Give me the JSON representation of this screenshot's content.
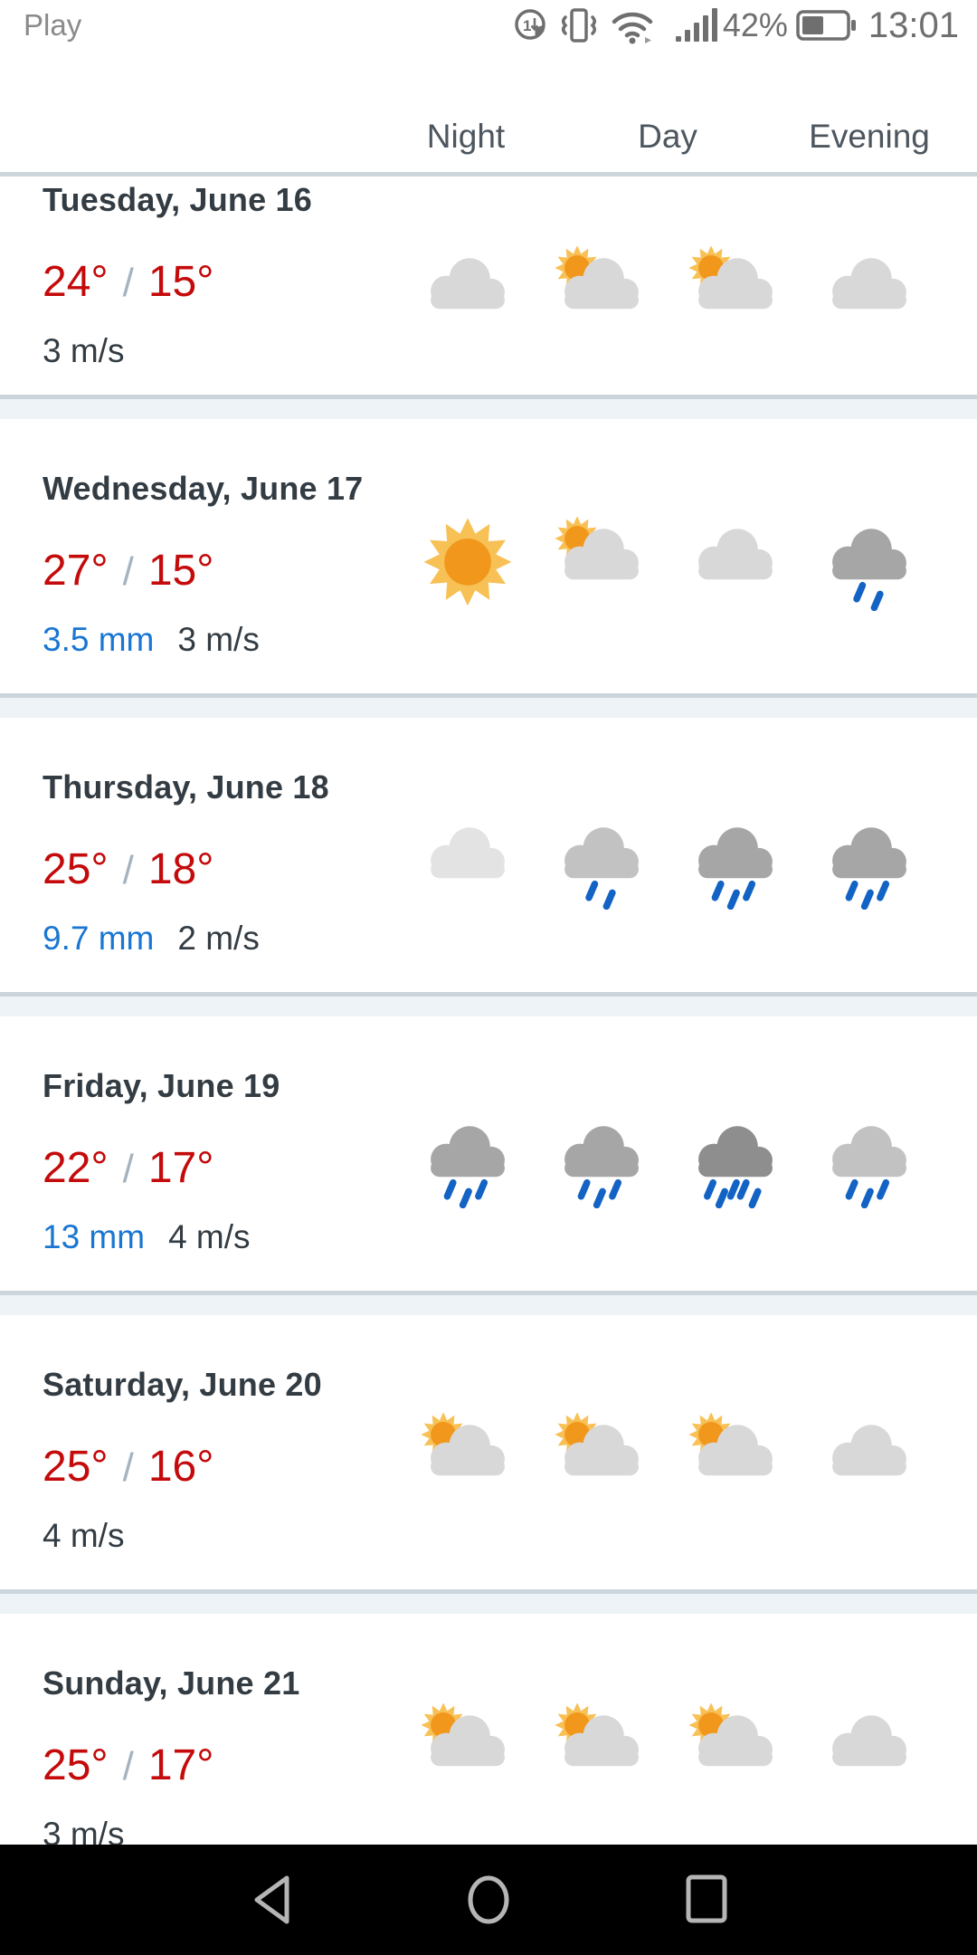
{
  "status_bar": {
    "carrier": "Play",
    "battery_percent": "42%",
    "time": "13:01",
    "icons": [
      "performance-mode",
      "vibrate",
      "wifi",
      "signal-strength",
      "battery"
    ]
  },
  "header": {
    "columns": {
      "night": "Night",
      "day": "Day",
      "evening": "Evening"
    }
  },
  "days": [
    {
      "title": "Tuesday, June 16",
      "high": "24°",
      "separator": "/",
      "low": "15°",
      "precipitation": "",
      "wind": "3 m/s",
      "icons": [
        {
          "type": "cloudy",
          "tone": "light"
        },
        {
          "type": "partly-sunny",
          "tone": "light"
        },
        {
          "type": "partly-sunny",
          "tone": "light"
        },
        {
          "type": "partly-moon",
          "tone": "light"
        }
      ]
    },
    {
      "title": "Wednesday, June 17",
      "high": "27°",
      "separator": "/",
      "low": "15°",
      "precipitation": "3.5 mm",
      "wind": "3 m/s",
      "icons": [
        {
          "type": "sunny"
        },
        {
          "type": "partly-sunny",
          "tone": "light"
        },
        {
          "type": "cloudy",
          "tone": "light"
        },
        {
          "type": "rain",
          "tone": "dark",
          "drops": 2
        }
      ]
    },
    {
      "title": "Thursday, June 18",
      "high": "25°",
      "separator": "/",
      "low": "18°",
      "precipitation": "9.7 mm",
      "wind": "2 m/s",
      "icons": [
        {
          "type": "cloudy",
          "tone": "lightest"
        },
        {
          "type": "rain",
          "tone": "medium",
          "drops": 2
        },
        {
          "type": "rain",
          "tone": "dark",
          "drops": 3
        },
        {
          "type": "rain",
          "tone": "dark",
          "drops": 3
        }
      ]
    },
    {
      "title": "Friday, June 19",
      "high": "22°",
      "separator": "/",
      "low": "17°",
      "precipitation": "13 mm",
      "wind": "4 m/s",
      "icons": [
        {
          "type": "rain",
          "tone": "dark",
          "drops": 3
        },
        {
          "type": "rain",
          "tone": "dark",
          "drops": 3
        },
        {
          "type": "rain",
          "tone": "darkest",
          "drops": 5
        },
        {
          "type": "rain",
          "tone": "medium",
          "drops": 3
        }
      ]
    },
    {
      "title": "Saturday, June 20",
      "high": "25°",
      "separator": "/",
      "low": "16°",
      "precipitation": "",
      "wind": "4 m/s",
      "icons": [
        {
          "type": "partly-sunny",
          "tone": "light"
        },
        {
          "type": "partly-sunny",
          "tone": "light"
        },
        {
          "type": "partly-sunny",
          "tone": "light"
        },
        {
          "type": "partly-moon",
          "tone": "light"
        }
      ]
    },
    {
      "title": "Sunday, June 21",
      "high": "25°",
      "separator": "/",
      "low": "17°",
      "precipitation": "",
      "wind": "3 m/s",
      "icons": [
        {
          "type": "partly-sunny",
          "tone": "light"
        },
        {
          "type": "partly-sunny",
          "tone": "light"
        },
        {
          "type": "partly-sunny",
          "tone": "light"
        },
        {
          "type": "partly-moon",
          "tone": "light"
        }
      ]
    }
  ],
  "colors": {
    "temperature_red": "#c40a0a",
    "precipitation_blue": "#1976d2",
    "rain_drop_blue": "#1263c4",
    "divider_band": "#edf3f7",
    "divider_line": "#ccd5db",
    "sun_rays": "#f8c155",
    "sun_disc": "#f0971c",
    "moon_gray": "#5d6670"
  },
  "nav_bar": {
    "icons": [
      "back",
      "home",
      "recents"
    ]
  }
}
